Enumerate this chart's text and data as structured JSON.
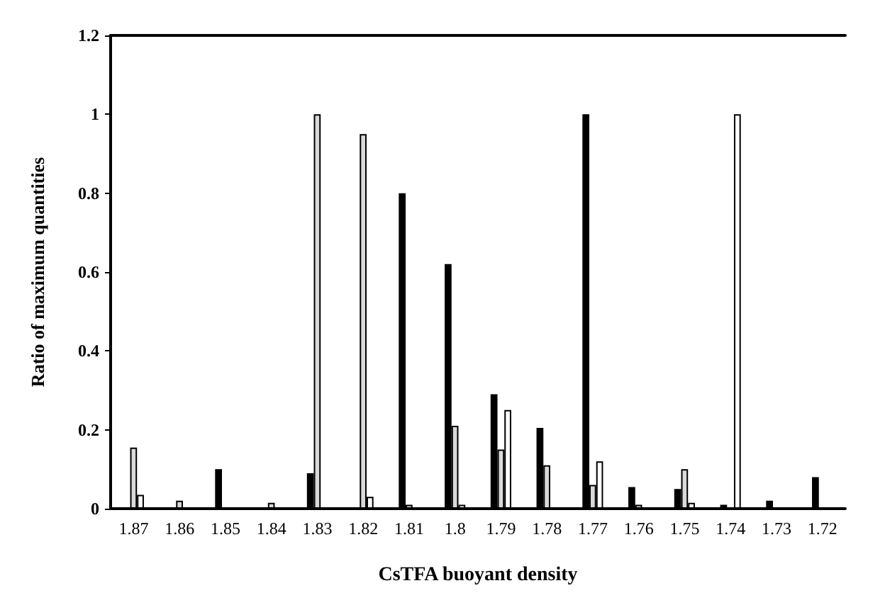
{
  "chart_data": {
    "type": "bar",
    "xlabel": "CsTFA buoyant density",
    "ylabel": "Ratio of maximum quantities",
    "categories": [
      "1.87",
      "1.86",
      "1.85",
      "1.84",
      "1.83",
      "1.82",
      "1.81",
      "1.8",
      "1.79",
      "1.78",
      "1.77",
      "1.76",
      "1.75",
      "1.74",
      "1.73",
      "1.72"
    ],
    "series": [
      {
        "color": "#000000",
        "values": [
          0,
          0,
          0.1,
          0,
          0.09,
          0,
          0.8,
          0.62,
          0.29,
          0.205,
          1,
          0.055,
          0.05,
          0.01,
          0.02,
          0.08
        ]
      },
      {
        "color": "#d9d9d9",
        "values": [
          0.155,
          0.02,
          0,
          0.015,
          1,
          0.95,
          0.01,
          0.21,
          0.15,
          0.11,
          0.06,
          0.01,
          0.1,
          0,
          0,
          0
        ]
      },
      {
        "color": "#ffffff",
        "values": [
          0.035,
          0,
          0,
          0,
          0,
          0.03,
          0,
          0.01,
          0.25,
          0,
          0.12,
          0,
          0.015,
          1,
          0,
          0
        ]
      }
    ],
    "ylim": [
      0,
      1.2
    ],
    "yticks": [
      0,
      0.2,
      0.4,
      0.6,
      0.8,
      1,
      1.2
    ],
    "grid": false
  }
}
